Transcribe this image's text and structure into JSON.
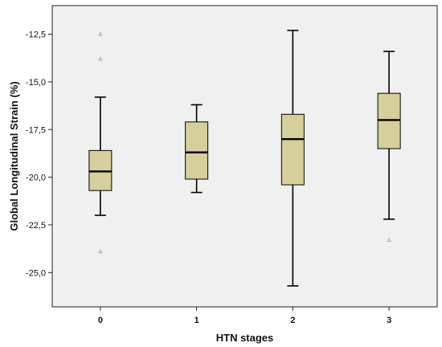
{
  "chart_data": {
    "type": "boxplot",
    "title": "",
    "xlabel": "HTN stages",
    "ylabel": "Global Longitudinal Strain (%)",
    "categories": [
      "0",
      "1",
      "2",
      "3"
    ],
    "ylim": [
      -26.8,
      -11.0
    ],
    "yticks": [
      -12.5,
      -15.0,
      -17.5,
      -20.0,
      -22.5,
      -25.0
    ],
    "ytick_labels": [
      "-12,5",
      "-15,0",
      "-17,5",
      "-20,0",
      "-22,5",
      "-25,0"
    ],
    "grid": false,
    "boxes": [
      {
        "category": "0",
        "whisker_low": -22.0,
        "q1": -20.7,
        "median": -19.7,
        "q3": -18.6,
        "whisker_high": -15.8,
        "outliers": [
          -12.5,
          -13.8,
          -23.9
        ]
      },
      {
        "category": "1",
        "whisker_low": -20.8,
        "q1": -20.1,
        "median": -18.7,
        "q3": -17.1,
        "whisker_high": -16.2,
        "outliers": []
      },
      {
        "category": "2",
        "whisker_low": -25.7,
        "q1": -20.4,
        "median": -18.0,
        "q3": -16.7,
        "whisker_high": -12.3,
        "outliers": []
      },
      {
        "category": "3",
        "whisker_low": -22.2,
        "q1": -18.5,
        "median": -17.0,
        "q3": -15.6,
        "whisker_high": -13.4,
        "outliers": [
          -23.3
        ]
      }
    ],
    "colors": {
      "plot_background": "#f0f0f0",
      "box_fill": "#d6cf9b",
      "stroke": "#000000",
      "outlier": "#a0a0a0"
    }
  }
}
